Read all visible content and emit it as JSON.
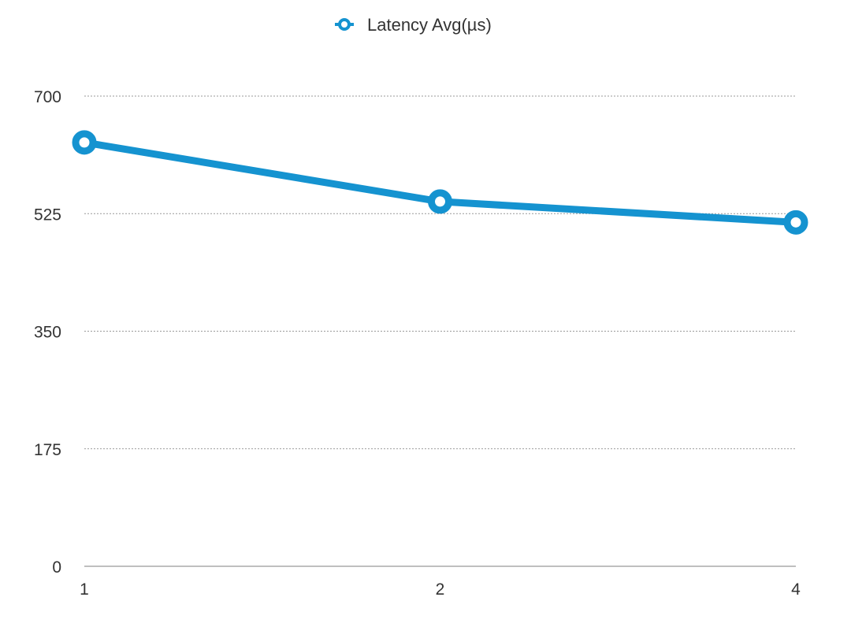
{
  "chart_data": {
    "type": "line",
    "title": "",
    "xlabel": "",
    "ylabel": "",
    "categories": [
      "1",
      "2",
      "4"
    ],
    "series": [
      {
        "name": "Latency Avg(µs)",
        "values": [
          631,
          543,
          512
        ],
        "color": "#1593d0"
      }
    ],
    "ylim": [
      0,
      700
    ],
    "yticks": [
      "0",
      "175",
      "350",
      "525",
      "700"
    ],
    "grid": true,
    "legend_position": "top-center"
  }
}
